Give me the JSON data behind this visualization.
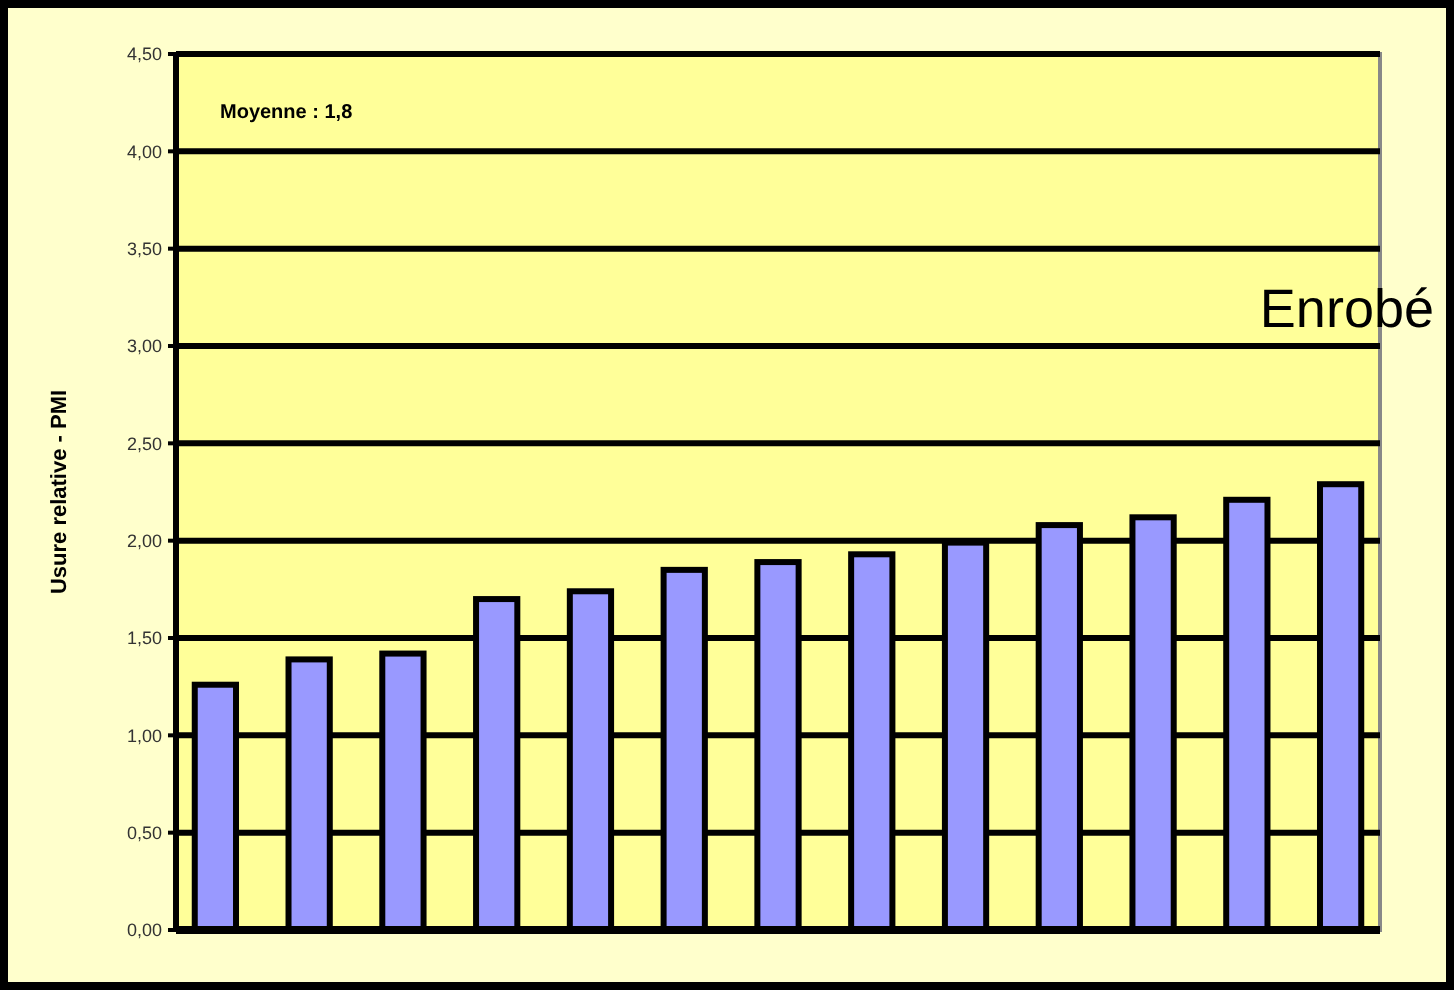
{
  "chart_data": {
    "type": "bar",
    "ylabel": "Usure relative - PMI",
    "categories": [
      null,
      null,
      null,
      null,
      null,
      null,
      null,
      null,
      null,
      null,
      null,
      null,
      null
    ],
    "values": [
      1.26,
      1.39,
      1.42,
      1.7,
      1.74,
      1.85,
      1.89,
      1.93,
      1.99,
      2.08,
      2.12,
      2.21,
      2.29
    ],
    "color": "#9999ff",
    "ylim": [
      0,
      4.5
    ],
    "yticks": [
      {
        "value": 0,
        "label": "0,00"
      },
      {
        "value": 0.5,
        "label": "0,50"
      },
      {
        "value": 1,
        "label": "1,00"
      },
      {
        "value": 1.5,
        "label": "1,50"
      },
      {
        "value": 2,
        "label": "2,00"
      },
      {
        "value": 2.5,
        "label": "2,50"
      },
      {
        "value": 3,
        "label": "3,00"
      },
      {
        "value": 3.5,
        "label": "3,50"
      },
      {
        "value": 4,
        "label": "4,00"
      },
      {
        "value": 4.5,
        "label": "4,50"
      }
    ],
    "grid": "y",
    "annotations": [
      "Moyenne : 1,8",
      "Enrobé"
    ]
  }
}
